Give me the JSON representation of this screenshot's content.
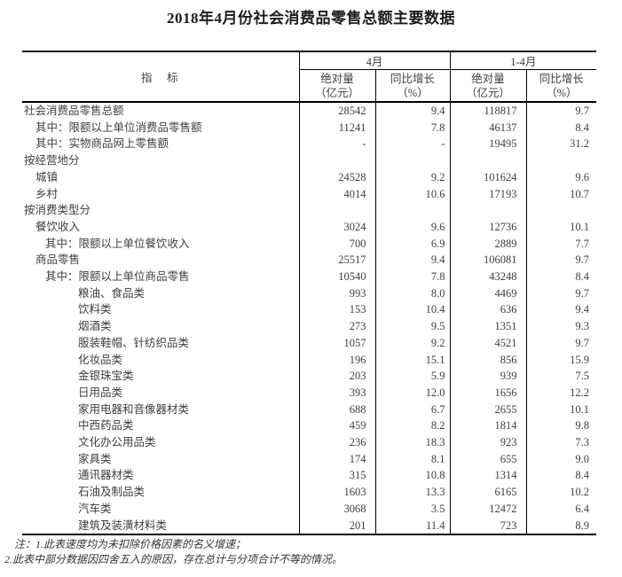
{
  "title": "2018年4月份社会消费品零售总额主要数据",
  "table": {
    "header": {
      "indicator": "指　标",
      "april": "4月",
      "jan_apr": "1-4月",
      "abs_line1": "绝对量",
      "abs_line2": "（亿元）",
      "yoy_line1": "同比增长",
      "yoy_line2": "（%）"
    },
    "rows": [
      {
        "label": "社会消费品零售总额",
        "indent": 0,
        "values": [
          "28542",
          "9.4",
          "118817",
          "9.7"
        ]
      },
      {
        "label": "其中：限额以上单位消费品零售额",
        "indent": 1,
        "values": [
          "11241",
          "7.8",
          "46137",
          "8.4"
        ]
      },
      {
        "label": "其中：实物商品网上零售额",
        "indent": 1,
        "values": [
          "-",
          "-",
          "19495",
          "31.2"
        ]
      },
      {
        "label": "按经营地分",
        "indent": 0,
        "values": [
          "",
          "",
          "",
          ""
        ]
      },
      {
        "label": "城镇",
        "indent": 1,
        "values": [
          "24528",
          "9.2",
          "101624",
          "9.6"
        ]
      },
      {
        "label": "乡村",
        "indent": 1,
        "values": [
          "4014",
          "10.6",
          "17193",
          "10.7"
        ]
      },
      {
        "label": "按消费类型分",
        "indent": 0,
        "values": [
          "",
          "",
          "",
          ""
        ]
      },
      {
        "label": "餐饮收入",
        "indent": 1,
        "values": [
          "3024",
          "9.6",
          "12736",
          "10.1"
        ]
      },
      {
        "label": "其中：限额以上单位餐饮收入",
        "indent": 2,
        "values": [
          "700",
          "6.9",
          "2889",
          "7.7"
        ]
      },
      {
        "label": "商品零售",
        "indent": 1,
        "values": [
          "25517",
          "9.4",
          "106081",
          "9.7"
        ]
      },
      {
        "label": "其中：限额以上单位商品零售",
        "indent": 2,
        "values": [
          "10540",
          "7.8",
          "43248",
          "8.4"
        ]
      },
      {
        "label": "粮油、食品类",
        "indent": 3,
        "values": [
          "993",
          "8.0",
          "4469",
          "9.7"
        ]
      },
      {
        "label": "饮料类",
        "indent": 3,
        "values": [
          "153",
          "10.4",
          "636",
          "9.4"
        ]
      },
      {
        "label": "烟酒类",
        "indent": 3,
        "values": [
          "273",
          "9.5",
          "1351",
          "9.3"
        ]
      },
      {
        "label": "服装鞋帽、针纺织品类",
        "indent": 3,
        "values": [
          "1057",
          "9.2",
          "4521",
          "9.7"
        ]
      },
      {
        "label": "化妆品类",
        "indent": 3,
        "values": [
          "196",
          "15.1",
          "856",
          "15.9"
        ]
      },
      {
        "label": "金银珠宝类",
        "indent": 3,
        "values": [
          "203",
          "5.9",
          "939",
          "7.5"
        ]
      },
      {
        "label": "日用品类",
        "indent": 3,
        "values": [
          "393",
          "12.0",
          "1656",
          "12.2"
        ]
      },
      {
        "label": "家用电器和音像器材类",
        "indent": 3,
        "values": [
          "688",
          "6.7",
          "2655",
          "10.1"
        ]
      },
      {
        "label": "中西药品类",
        "indent": 3,
        "values": [
          "459",
          "8.2",
          "1814",
          "9.8"
        ]
      },
      {
        "label": "文化办公用品类",
        "indent": 3,
        "values": [
          "236",
          "18.3",
          "923",
          "7.3"
        ]
      },
      {
        "label": "家具类",
        "indent": 3,
        "values": [
          "174",
          "8.1",
          "655",
          "9.0"
        ]
      },
      {
        "label": "通讯器材类",
        "indent": 3,
        "values": [
          "315",
          "10.8",
          "1314",
          "8.4"
        ]
      },
      {
        "label": "石油及制品类",
        "indent": 3,
        "values": [
          "1603",
          "13.3",
          "6165",
          "10.2"
        ]
      },
      {
        "label": "汽车类",
        "indent": 3,
        "values": [
          "3068",
          "3.5",
          "12472",
          "6.4"
        ]
      },
      {
        "label": "建筑及装潢材料类",
        "indent": 3,
        "values": [
          "201",
          "11.4",
          "723",
          "8.9"
        ]
      }
    ]
  },
  "notes": [
    "注：1.此表速度均为未扣除价格因素的名义增速；",
    "2.此表中部分数据因四舍五入的原因，存在总计与分项合计不等的情况。"
  ]
}
